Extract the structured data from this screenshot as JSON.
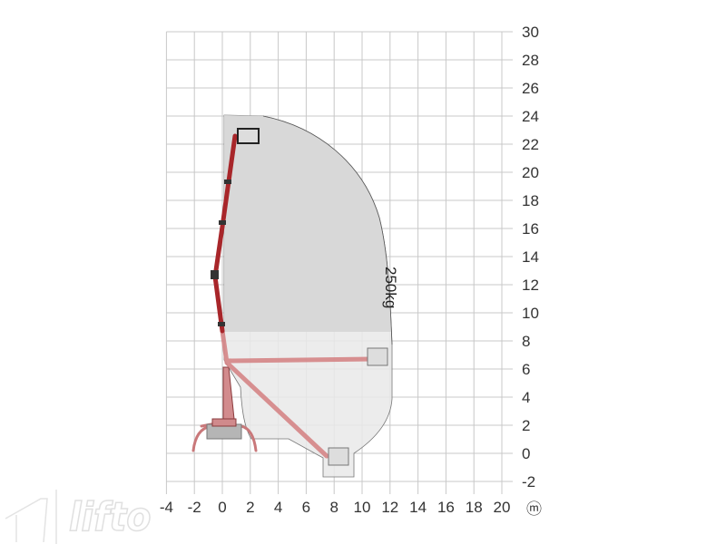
{
  "diagram": {
    "type": "working-range",
    "x_axis": {
      "min": -4,
      "max": 20,
      "step": 2,
      "unit_symbol": "ⓜ",
      "ticks": [
        "-4",
        "-2",
        "0",
        "2",
        "4",
        "6",
        "8",
        "10",
        "12",
        "14",
        "16",
        "18",
        "20"
      ]
    },
    "y_axis": {
      "min": -2,
      "max": 30,
      "step": 2,
      "ticks": [
        "30",
        "28",
        "26",
        "24",
        "22",
        "20",
        "18",
        "16",
        "14",
        "12",
        "10",
        "8",
        "6",
        "4",
        "2",
        "0",
        "-2"
      ]
    },
    "load_label": "250kg",
    "colors": {
      "boom": "#b0282c",
      "envelope": "#d9d9d9",
      "envelope_lower": "#e8e8e8",
      "grid": "#c8c8c8"
    },
    "logo_text": "lifto"
  }
}
